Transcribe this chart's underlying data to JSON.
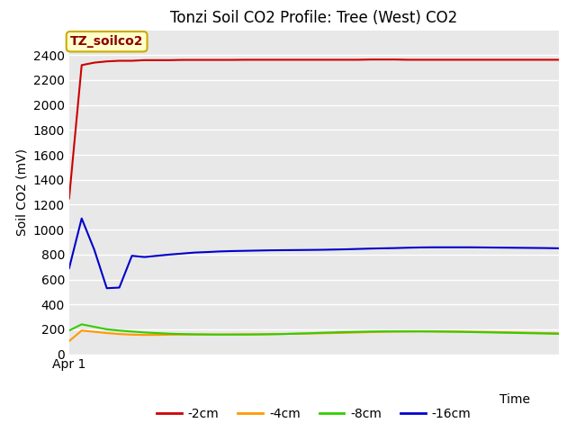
{
  "title": "Tonzi Soil CO2 Profile: Tree (West) CO2",
  "ylabel": "Soil CO2 (mV)",
  "xlabel_right": "Time",
  "x_tick_label": "Apr 1",
  "annotation_label": "TZ_soilco2",
  "ylim": [
    0,
    2600
  ],
  "yticks": [
    0,
    200,
    400,
    600,
    800,
    1000,
    1200,
    1400,
    1600,
    1800,
    2000,
    2200,
    2400
  ],
  "n_points": 40,
  "series": {
    "-2cm": {
      "color": "#cc0000",
      "values": [
        1250,
        2320,
        2340,
        2350,
        2355,
        2355,
        2360,
        2360,
        2360,
        2362,
        2362,
        2362,
        2362,
        2362,
        2363,
        2363,
        2363,
        2363,
        2363,
        2363,
        2363,
        2363,
        2363,
        2363,
        2365,
        2365,
        2365,
        2363,
        2363,
        2363,
        2363,
        2363,
        2363,
        2363,
        2363,
        2363,
        2363,
        2363,
        2363,
        2363
      ]
    },
    "-4cm": {
      "color": "#ff9900",
      "values": [
        105,
        190,
        180,
        170,
        162,
        157,
        155,
        155,
        157,
        158,
        158,
        158,
        158,
        159,
        160,
        160,
        162,
        163,
        165,
        166,
        168,
        170,
        172,
        175,
        178,
        180,
        182,
        183,
        184,
        184,
        183,
        182,
        181,
        180,
        178,
        176,
        174,
        172,
        170,
        168
      ]
    },
    "-8cm": {
      "color": "#33cc00",
      "values": [
        190,
        240,
        220,
        200,
        190,
        182,
        175,
        170,
        165,
        162,
        160,
        159,
        158,
        158,
        158,
        159,
        160,
        162,
        165,
        168,
        172,
        175,
        178,
        180,
        182,
        183,
        183,
        183,
        183,
        182,
        181,
        180,
        178,
        176,
        174,
        172,
        170,
        168,
        166,
        164
      ]
    },
    "-16cm": {
      "color": "#0000cc",
      "values": [
        690,
        1090,
        840,
        530,
        535,
        790,
        780,
        790,
        800,
        808,
        816,
        820,
        825,
        828,
        830,
        832,
        834,
        835,
        836,
        837,
        838,
        840,
        842,
        845,
        848,
        850,
        852,
        855,
        857,
        858,
        858,
        858,
        858,
        857,
        856,
        855,
        854,
        853,
        852,
        850
      ]
    }
  },
  "background_color": "#e8e8e8",
  "grid_color": "#ffffff",
  "title_fontsize": 12,
  "axis_label_fontsize": 10,
  "tick_fontsize": 10,
  "legend_fontsize": 10,
  "annotation_fontsize": 10,
  "annotation_color": "#8B0000",
  "annotation_bg": "#ffffcc",
  "annotation_edge": "#ccaa00"
}
